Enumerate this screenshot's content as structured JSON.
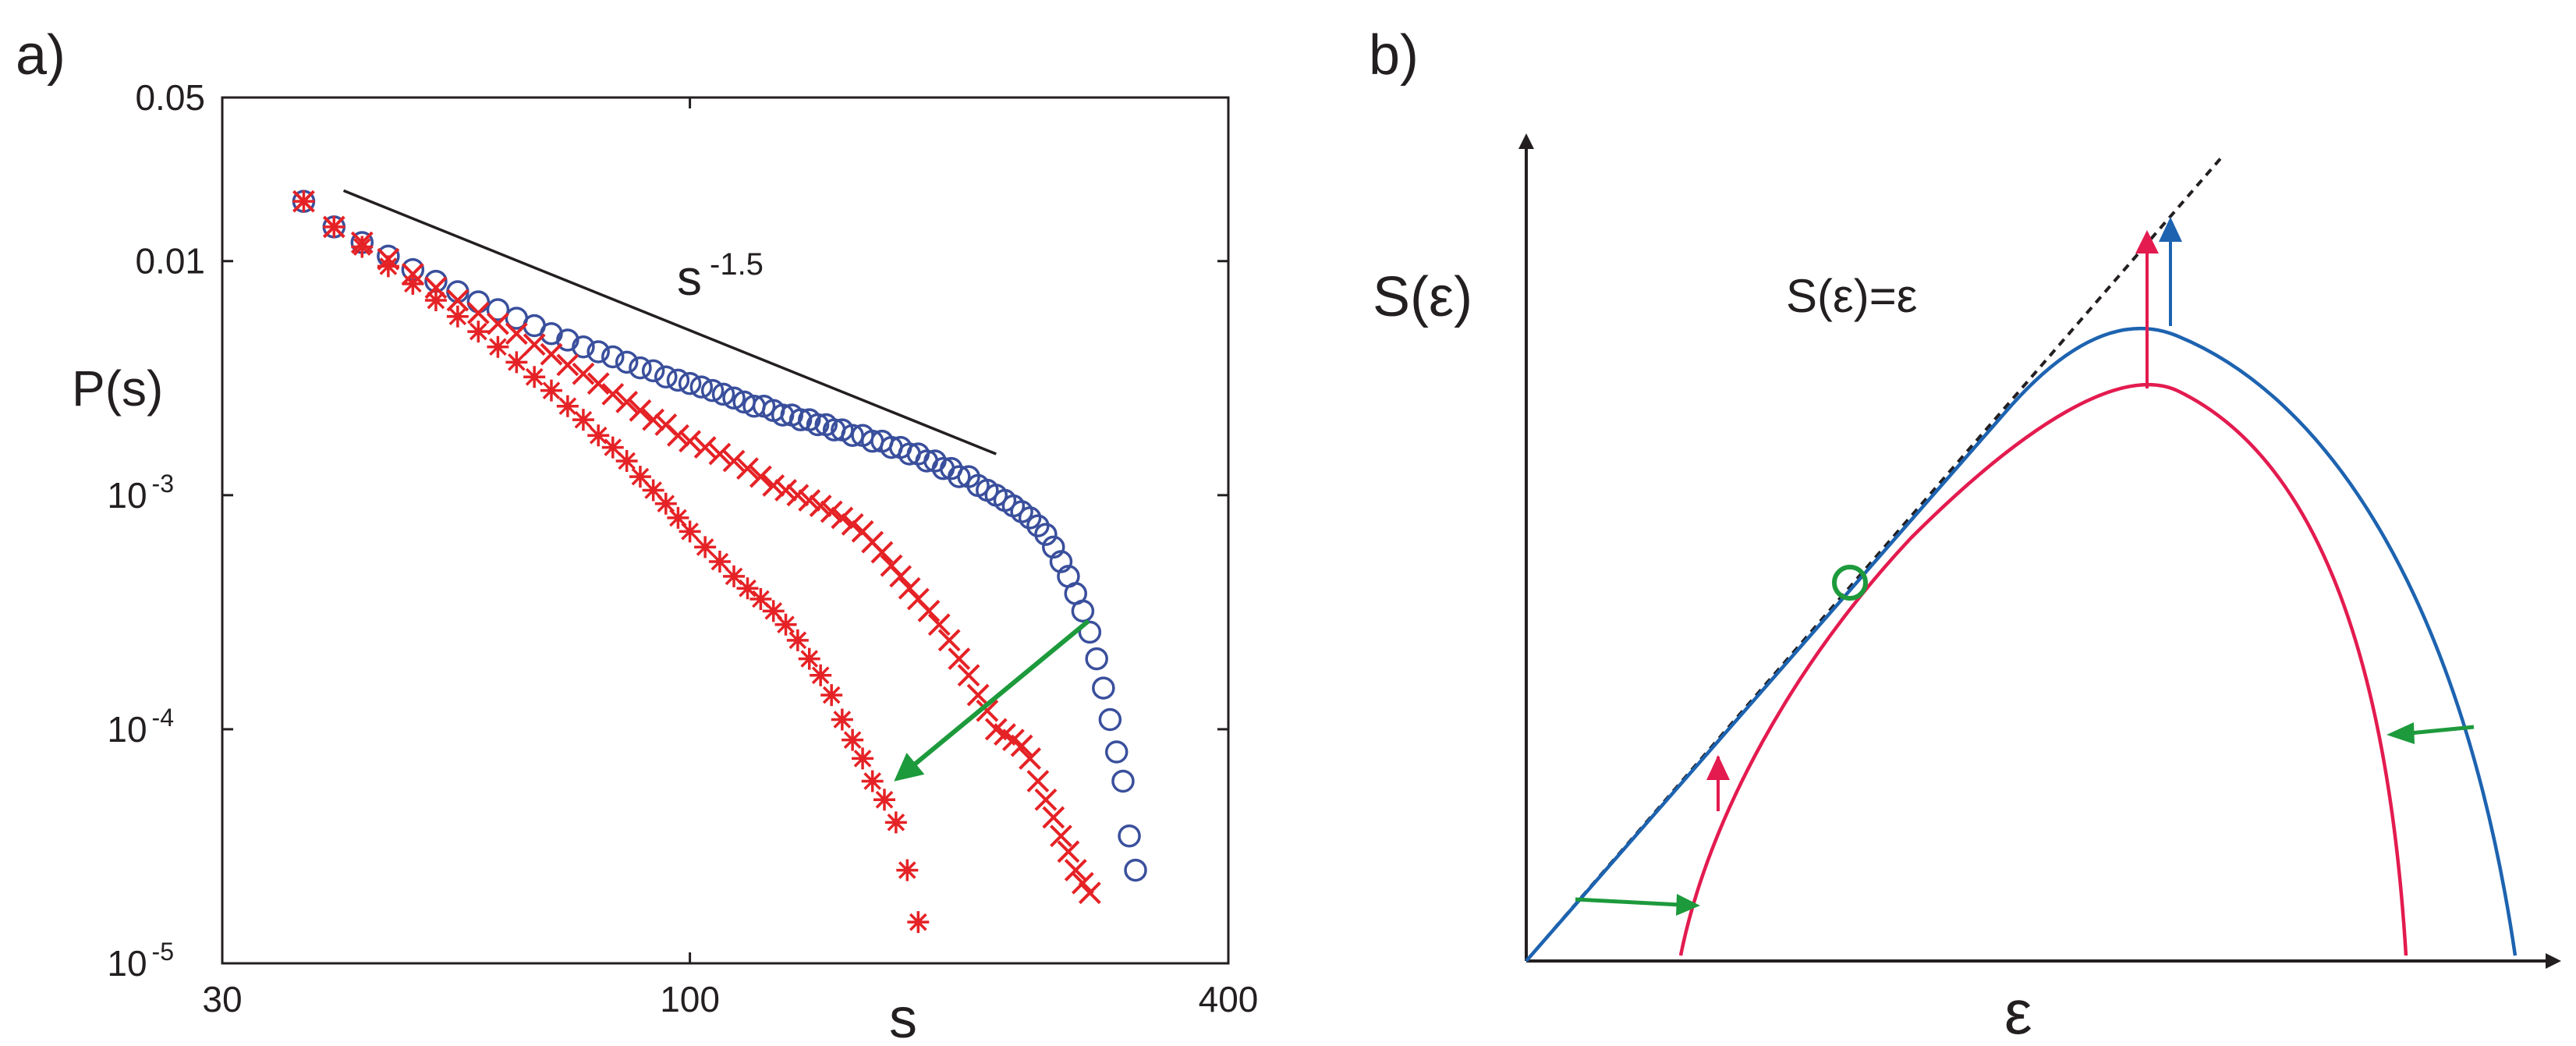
{
  "panels": {
    "a": {
      "label": "a)"
    },
    "b": {
      "label": "b)"
    }
  },
  "colors": {
    "blue": "#3a4f9c",
    "red": "#e52226",
    "green": "#1d9a3c",
    "curve_blue": "#1d63b0",
    "curve_pink": "#e31b4f",
    "ink": "#231f20"
  },
  "chart_data": [
    {
      "type": "scatter",
      "panel": "a",
      "xscale": "log",
      "yscale": "log",
      "xlim": [
        30,
        400
      ],
      "ylim": [
        1e-05,
        0.05
      ],
      "xlabel": "s",
      "ylabel": "P(s)",
      "x_ticks": [
        {
          "value": 30,
          "label": "30"
        },
        {
          "value": 100,
          "label": "100"
        },
        {
          "value": 400,
          "label": "400"
        }
      ],
      "y_ticks": [
        {
          "value": 1e-05,
          "base": "10",
          "exp": "-5"
        },
        {
          "value": 0.0001,
          "base": "10",
          "exp": "-4"
        },
        {
          "value": 0.001,
          "base": "10",
          "exp": "-3"
        },
        {
          "value": 0.01,
          "label": "0.01"
        },
        {
          "value": 0.05,
          "label": "0.05"
        }
      ],
      "reference_line": {
        "label_base": "s",
        "label_exp": "-1.5",
        "x": [
          41,
          220
        ],
        "y": [
          0.02,
          0.0015
        ]
      },
      "trend_arrow": {
        "from": [
          279,
          0.00029
        ],
        "to": [
          171,
          6.2e-05
        ]
      },
      "series": [
        {
          "name": "circles",
          "marker": "circle",
          "color": "#3a4f9c",
          "points": [
            [
              37,
              0.018
            ],
            [
              40,
              0.014
            ],
            [
              43,
              0.012
            ],
            [
              46,
              0.0105
            ],
            [
              49,
              0.0092
            ],
            [
              52,
              0.0082
            ],
            [
              55,
              0.0074
            ],
            [
              58,
              0.0067
            ],
            [
              61,
              0.0062
            ],
            [
              64,
              0.0057
            ],
            [
              67,
              0.0053
            ],
            [
              70,
              0.0049
            ],
            [
              73,
              0.0046
            ],
            [
              76,
              0.0043
            ],
            [
              79,
              0.0041
            ],
            [
              82,
              0.0039
            ],
            [
              85,
              0.0037
            ],
            [
              88,
              0.0035
            ],
            [
              91,
              0.0034
            ],
            [
              94,
              0.0032
            ],
            [
              97,
              0.0031
            ],
            [
              100,
              0.003
            ],
            [
              103,
              0.0029
            ],
            [
              106,
              0.0028
            ],
            [
              109,
              0.0027
            ],
            [
              112,
              0.0026
            ],
            [
              115,
              0.0025
            ],
            [
              118,
              0.0024
            ],
            [
              121,
              0.0024
            ],
            [
              124,
              0.0023
            ],
            [
              127,
              0.0022
            ],
            [
              130,
              0.0022
            ],
            [
              133,
              0.0021
            ],
            [
              136,
              0.0021
            ],
            [
              139,
              0.002
            ],
            [
              142,
              0.002
            ],
            [
              145,
              0.0019
            ],
            [
              148,
              0.0019
            ],
            [
              152,
              0.0018
            ],
            [
              156,
              0.0018
            ],
            [
              160,
              0.0017
            ],
            [
              164,
              0.0017
            ],
            [
              168,
              0.0016
            ],
            [
              172,
              0.0016
            ],
            [
              176,
              0.0015
            ],
            [
              180,
              0.0015
            ],
            [
              184,
              0.0014
            ],
            [
              188,
              0.0014
            ],
            [
              192,
              0.0013
            ],
            [
              196,
              0.0013
            ],
            [
              200,
              0.0012
            ],
            [
              205,
              0.0012
            ],
            [
              210,
              0.0011
            ],
            [
              215,
              0.00105
            ],
            [
              220,
              0.001
            ],
            [
              225,
              0.00095
            ],
            [
              230,
              0.0009
            ],
            [
              235,
              0.00085
            ],
            [
              240,
              0.0008
            ],
            [
              245,
              0.00074
            ],
            [
              250,
              0.00068
            ],
            [
              255,
              0.0006
            ],
            [
              260,
              0.00052
            ],
            [
              265,
              0.00045
            ],
            [
              270,
              0.00038
            ],
            [
              275,
              0.00032
            ],
            [
              280,
              0.00026
            ],
            [
              285,
              0.0002
            ],
            [
              290,
              0.00015
            ],
            [
              295,
              0.00011
            ],
            [
              300,
              8e-05
            ],
            [
              305,
              6e-05
            ],
            [
              310,
              3.5e-05
            ],
            [
              315,
              2.5e-05
            ]
          ]
        },
        {
          "name": "crosses",
          "marker": "x",
          "color": "#e52226",
          "points": [
            [
              37,
              0.018
            ],
            [
              40,
              0.014
            ],
            [
              43,
              0.012
            ],
            [
              46,
              0.0102
            ],
            [
              49,
              0.0088
            ],
            [
              52,
              0.0077
            ],
            [
              55,
              0.0068
            ],
            [
              58,
              0.006
            ],
            [
              61,
              0.0054
            ],
            [
              64,
              0.0049
            ],
            [
              67,
              0.0044
            ],
            [
              70,
              0.004
            ],
            [
              73,
              0.0036
            ],
            [
              76,
              0.0033
            ],
            [
              79,
              0.003
            ],
            [
              82,
              0.0027
            ],
            [
              85,
              0.0025
            ],
            [
              88,
              0.0023
            ],
            [
              91,
              0.0021
            ],
            [
              94,
              0.002
            ],
            [
              97,
              0.0018
            ],
            [
              100,
              0.0017
            ],
            [
              104,
              0.0016
            ],
            [
              108,
              0.0015
            ],
            [
              112,
              0.0014
            ],
            [
              116,
              0.0013
            ],
            [
              120,
              0.0012
            ],
            [
              124,
              0.0011
            ],
            [
              128,
              0.00105
            ],
            [
              132,
              0.001
            ],
            [
              136,
              0.00095
            ],
            [
              140,
              0.0009
            ],
            [
              144,
              0.00085
            ],
            [
              148,
              0.0008
            ],
            [
              152,
              0.00075
            ],
            [
              156,
              0.0007
            ],
            [
              160,
              0.00063
            ],
            [
              164,
              0.00057
            ],
            [
              168,
              0.0005
            ],
            [
              172,
              0.00045
            ],
            [
              176,
              0.0004
            ],
            [
              180,
              0.00036
            ],
            [
              185,
              0.00032
            ],
            [
              190,
              0.00028
            ],
            [
              195,
              0.00024
            ],
            [
              200,
              0.0002
            ],
            [
              205,
              0.00017
            ],
            [
              210,
              0.00014
            ],
            [
              215,
              0.00012
            ],
            [
              220,
              0.0001
            ],
            [
              225,
              9.5e-05
            ],
            [
              230,
              9e-05
            ],
            [
              235,
              8.5e-05
            ],
            [
              240,
              7.5e-05
            ],
            [
              245,
              6e-05
            ],
            [
              250,
              5e-05
            ],
            [
              255,
              4.2e-05
            ],
            [
              260,
              3.5e-05
            ],
            [
              265,
              3e-05
            ],
            [
              270,
              2.5e-05
            ],
            [
              275,
              2.2e-05
            ],
            [
              280,
              2e-05
            ]
          ]
        },
        {
          "name": "asterisks",
          "marker": "asterisk",
          "color": "#e52226",
          "points": [
            [
              37,
              0.018
            ],
            [
              40,
              0.014
            ],
            [
              43,
              0.0115
            ],
            [
              46,
              0.0095
            ],
            [
              49,
              0.008
            ],
            [
              52,
              0.0068
            ],
            [
              55,
              0.0058
            ],
            [
              58,
              0.005
            ],
            [
              61,
              0.0043
            ],
            [
              64,
              0.0037
            ],
            [
              67,
              0.0032
            ],
            [
              70,
              0.0028
            ],
            [
              73,
              0.0024
            ],
            [
              76,
              0.0021
            ],
            [
              79,
              0.0018
            ],
            [
              82,
              0.0016
            ],
            [
              85,
              0.0014
            ],
            [
              88,
              0.0012
            ],
            [
              91,
              0.00105
            ],
            [
              94,
              0.00092
            ],
            [
              97,
              0.0008
            ],
            [
              100,
              0.0007
            ],
            [
              104,
              0.0006
            ],
            [
              108,
              0.00052
            ],
            [
              112,
              0.00045
            ],
            [
              116,
              0.0004
            ],
            [
              120,
              0.00036
            ],
            [
              124,
              0.00032
            ],
            [
              128,
              0.00028
            ],
            [
              132,
              0.00024
            ],
            [
              136,
              0.0002
            ],
            [
              140,
              0.00017
            ],
            [
              144,
              0.00014
            ],
            [
              148,
              0.00011
            ],
            [
              152,
              9e-05
            ],
            [
              156,
              7.5e-05
            ],
            [
              160,
              6e-05
            ],
            [
              165,
              5e-05
            ],
            [
              170,
              4e-05
            ],
            [
              175,
              2.5e-05
            ],
            [
              180,
              1.5e-05
            ]
          ]
        }
      ]
    },
    {
      "type": "line",
      "panel": "b",
      "xlabel": "ε",
      "ylabel": "S(ε)",
      "xlim": [
        0,
        1
      ],
      "ylim": [
        0,
        1
      ],
      "diagonal_label": "S(ε)=ε",
      "series": [
        {
          "name": "blue-curve",
          "color": "#1d63b0",
          "x0": 0.0,
          "x1": 1.0,
          "peak_x": 0.6,
          "peak_y": 0.6
        },
        {
          "name": "pink-curve",
          "color": "#e31b4f",
          "x0": 0.15,
          "x1": 0.91,
          "peak_x": 0.57,
          "peak_y": 0.53
        }
      ],
      "marker": {
        "name": "intersection",
        "shape": "circle",
        "color": "#1d9a3c",
        "x": 0.33,
        "y": 0.33
      }
    }
  ]
}
